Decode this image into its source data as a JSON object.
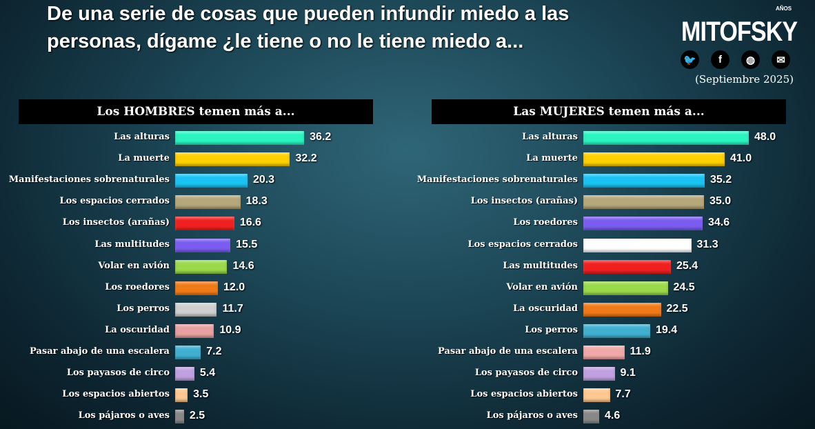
{
  "title": "De una serie de cosas que pueden infundir miedo a las personas, dígame ¿le tiene o no le tiene miedo a...",
  "logo": {
    "brand": "MITOFSKY",
    "years": "AÑOS"
  },
  "social_icons": [
    "twitter-icon",
    "facebook-icon",
    "web-icon",
    "email-icon"
  ],
  "date": "(Septiembre 2025)",
  "chart_data": [
    {
      "type": "bar",
      "orientation": "horizontal",
      "title": "Los HOMBRES temen más a...",
      "categories": [
        "Las alturas",
        "La muerte",
        "Manifestaciones sobrenaturales",
        "Los espacios cerrados",
        "Los insectos (arañas)",
        "Las multitudes",
        "Volar en avión",
        "Los roedores",
        "Los perros",
        "La oscuridad",
        "Pasar abajo de una escalera",
        "Los payasos de circo",
        "Los espacios abiertos",
        "Los pájaros o aves"
      ],
      "values": [
        36.2,
        32.2,
        20.3,
        18.3,
        16.6,
        15.5,
        14.6,
        12.0,
        11.7,
        10.9,
        7.2,
        5.4,
        3.5,
        2.5
      ],
      "colors": [
        "#2af5c0",
        "#ffd000",
        "#19c4f5",
        "#b5a77a",
        "#f02020",
        "#7a5cf0",
        "#9ad94a",
        "#f07a18",
        "#cfcfcf",
        "#e8a0a0",
        "#40b0d0",
        "#c0a0e0",
        "#ffc890",
        "#888888"
      ]
    },
    {
      "type": "bar",
      "orientation": "horizontal",
      "title": "Las MUJERES temen más a...",
      "categories": [
        "Las alturas",
        "La muerte",
        "Manifestaciones sobrenaturales",
        "Los insectos (arañas)",
        "Los roedores",
        "Los espacios cerrados",
        "Las multitudes",
        "Volar en avión",
        "La oscuridad",
        "Los perros",
        "Pasar abajo de una escalera",
        "Los payasos de circo",
        "Los espacios abiertos",
        "Los pájaros o aves"
      ],
      "values": [
        48.0,
        41.0,
        35.2,
        35.0,
        34.6,
        31.3,
        25.4,
        24.5,
        22.5,
        19.4,
        11.9,
        9.1,
        7.7,
        4.6
      ],
      "colors": [
        "#2af5c0",
        "#ffd000",
        "#19c4f5",
        "#b5a77a",
        "#7a5cf0",
        "#ffffff",
        "#f02020",
        "#9ad94a",
        "#f07a18",
        "#40b0d0",
        "#f0a8a8",
        "#c0a0e0",
        "#ffc890",
        "#888888"
      ]
    }
  ]
}
